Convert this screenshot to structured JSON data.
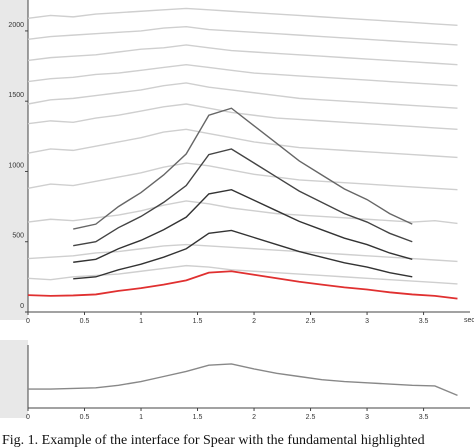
{
  "chart_data": [
    {
      "type": "line",
      "x_label": "seconds",
      "x": [
        0,
        0.2,
        0.4,
        0.6,
        0.8,
        1.0,
        1.2,
        1.4,
        1.6,
        1.8,
        2.0,
        2.2,
        2.4,
        2.6,
        2.8,
        3.0,
        3.2,
        3.4,
        3.6,
        3.8
      ],
      "xlim": [
        0,
        3.84
      ],
      "xticks": [
        0,
        0.5,
        1,
        1.5,
        2,
        2.5,
        3,
        3.5
      ],
      "ylim": [
        0,
        2220
      ],
      "yticks": [
        0,
        500,
        1000,
        1500,
        2000
      ],
      "series": [
        {
          "color": "#cfcfcf",
          "values": [
            240,
            230,
            250,
            260,
            270,
            290,
            310,
            330,
            320,
            300,
            290,
            280,
            270,
            260,
            250,
            240,
            230,
            220,
            210,
            200
          ]
        },
        {
          "color": "#cfcfcf",
          "values": [
            380,
            390,
            400,
            420,
            430,
            450,
            470,
            480,
            470,
            460,
            450,
            440,
            430,
            420,
            410,
            400,
            390,
            380,
            370,
            360
          ]
        },
        {
          "color": "#cfcfcf",
          "values": [
            640,
            660,
            650,
            670,
            690,
            720,
            760,
            790,
            770,
            740,
            720,
            700,
            690,
            680,
            670,
            660,
            650,
            640,
            650,
            630
          ]
        },
        {
          "color": "#cfcfcf",
          "values": [
            880,
            910,
            900,
            930,
            960,
            990,
            1030,
            1060,
            1040,
            1010,
            980,
            960,
            940,
            930,
            920,
            910,
            900,
            890,
            880,
            870
          ]
        },
        {
          "color": "#cfcfcf",
          "values": [
            1130,
            1160,
            1150,
            1180,
            1210,
            1240,
            1280,
            1300,
            1270,
            1240,
            1210,
            1190,
            1170,
            1160,
            1150,
            1140,
            1130,
            1120,
            1110,
            1100
          ]
        },
        {
          "color": "#cfcfcf",
          "values": [
            1340,
            1360,
            1350,
            1380,
            1400,
            1430,
            1460,
            1480,
            1450,
            1420,
            1400,
            1380,
            1370,
            1360,
            1350,
            1340,
            1330,
            1320,
            1310,
            1300
          ]
        },
        {
          "color": "#cfcfcf",
          "values": [
            1480,
            1510,
            1520,
            1540,
            1560,
            1580,
            1610,
            1630,
            1600,
            1580,
            1560,
            1540,
            1520,
            1510,
            1500,
            1490,
            1480,
            1470,
            1460,
            1450
          ]
        },
        {
          "color": "#cfcfcf",
          "values": [
            1640,
            1660,
            1670,
            1690,
            1700,
            1720,
            1740,
            1760,
            1740,
            1720,
            1700,
            1690,
            1680,
            1670,
            1660,
            1650,
            1640,
            1630,
            1620,
            1610
          ]
        },
        {
          "color": "#cfcfcf",
          "values": [
            1790,
            1810,
            1820,
            1830,
            1850,
            1870,
            1880,
            1900,
            1880,
            1860,
            1850,
            1840,
            1830,
            1820,
            1810,
            1800,
            1790,
            1780,
            1770,
            1760
          ]
        },
        {
          "color": "#cfcfcf",
          "values": [
            1940,
            1960,
            1970,
            1980,
            1990,
            2000,
            2020,
            2030,
            2010,
            2000,
            1990,
            1980,
            1970,
            1960,
            1950,
            1940,
            1930,
            1920,
            1910,
            1900
          ]
        },
        {
          "color": "#cfcfcf",
          "values": [
            2090,
            2110,
            2100,
            2120,
            2130,
            2140,
            2150,
            2160,
            2150,
            2140,
            2130,
            2120,
            2110,
            2100,
            2090,
            2080,
            2070,
            2060,
            2050,
            2040
          ]
        },
        {
          "color": "#333333",
          "values": [
            null,
            null,
            236,
            250,
            300,
            340,
            390,
            450,
            560,
            580,
            530,
            480,
            430,
            390,
            350,
            320,
            280,
            250,
            null,
            null
          ]
        },
        {
          "color": "#333333",
          "values": [
            null,
            null,
            354,
            375,
            450,
            510,
            585,
            675,
            840,
            870,
            795,
            720,
            645,
            585,
            525,
            480,
            420,
            375,
            null,
            null
          ]
        },
        {
          "color": "#444444",
          "values": [
            null,
            null,
            472,
            500,
            600,
            680,
            780,
            900,
            1120,
            1160,
            1060,
            960,
            860,
            780,
            700,
            640,
            560,
            500,
            null,
            null
          ]
        },
        {
          "color": "#666666",
          "values": [
            null,
            null,
            590,
            625,
            750,
            850,
            975,
            1125,
            1400,
            1450,
            1325,
            1200,
            1075,
            975,
            875,
            800,
            700,
            625,
            null,
            null
          ]
        },
        {
          "color": "#e03030",
          "values": [
            120,
            115,
            118,
            125,
            150,
            170,
            195,
            225,
            280,
            290,
            265,
            240,
            215,
            195,
            175,
            160,
            140,
            125,
            115,
            95
          ]
        }
      ]
    },
    {
      "type": "line",
      "x": [
        0,
        0.2,
        0.4,
        0.6,
        0.8,
        1.0,
        1.2,
        1.4,
        1.6,
        1.8,
        2.0,
        2.2,
        2.4,
        2.6,
        2.8,
        3.0,
        3.2,
        3.4,
        3.6,
        3.8
      ],
      "xlim": [
        0,
        3.84
      ],
      "xticks": [
        0,
        0.5,
        1,
        1.5,
        2,
        2.5,
        3,
        3.5
      ],
      "ylim": [
        0,
        1
      ],
      "series": [
        {
          "color": "#888888",
          "values": [
            0.3,
            0.3,
            0.31,
            0.32,
            0.36,
            0.42,
            0.5,
            0.58,
            0.68,
            0.7,
            0.62,
            0.55,
            0.5,
            0.45,
            0.42,
            0.4,
            0.38,
            0.36,
            0.35,
            0.2
          ]
        }
      ]
    }
  ],
  "caption": "Fig. 1.  Example of the interface for Spear with the fundamental highlighted"
}
